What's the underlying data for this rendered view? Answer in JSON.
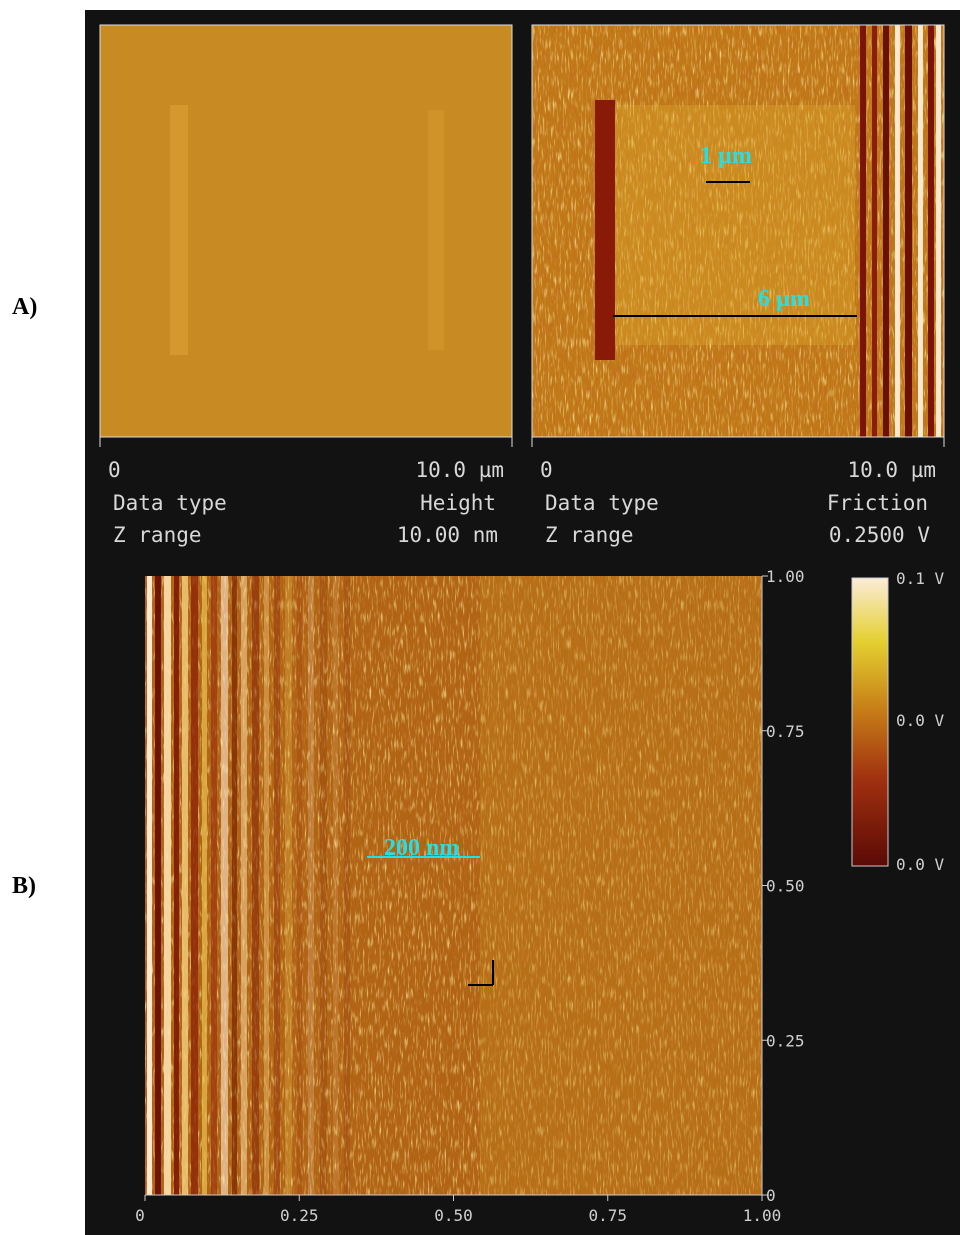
{
  "labels": {
    "a": "A)",
    "b": "B)"
  },
  "panel_a": {
    "left": {
      "x_start": "0",
      "x_end": "10.0 µm",
      "data_type_label": "Data type",
      "data_type": "Height",
      "z_range_label": "Z range",
      "z_range": "10.00 nm"
    },
    "right": {
      "x_start": "0",
      "x_end": "10.0 µm",
      "data_type_label": "Data type",
      "data_type": "Friction",
      "z_range_label": "Z range",
      "z_range": "0.2500  V"
    },
    "annotations": [
      "1 µm",
      "6 µm"
    ]
  },
  "panel_b": {
    "y_ticks": [
      "1.00",
      "0.75",
      "0.50",
      "0.25",
      "0"
    ],
    "x_ticks": [
      "0",
      "0.25",
      "0.50",
      "0.75",
      "1.00"
    ],
    "colorbar_labels": [
      "0.1 V",
      "0.0 V",
      "0.0 V"
    ],
    "scale_label": "200 nm"
  }
}
